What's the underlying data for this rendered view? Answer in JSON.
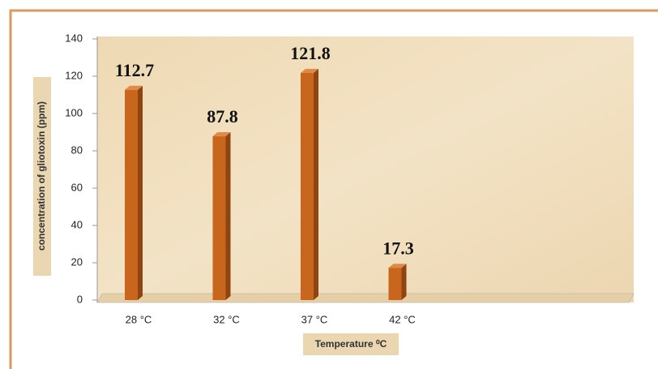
{
  "chart_data": {
    "type": "bar",
    "categories": [
      "28 °C",
      "32 °C",
      "37 °C",
      "42 °C"
    ],
    "values": [
      112.7,
      87.8,
      121.8,
      17.3
    ],
    "color": "#c8661e",
    "ylim": [
      0,
      140
    ],
    "yticks": [
      0,
      20,
      40,
      60,
      80,
      100,
      120,
      140
    ],
    "ylabel": "concentration of gliotoxin (ppm)",
    "xlabel": "Temperature ⁰C"
  }
}
